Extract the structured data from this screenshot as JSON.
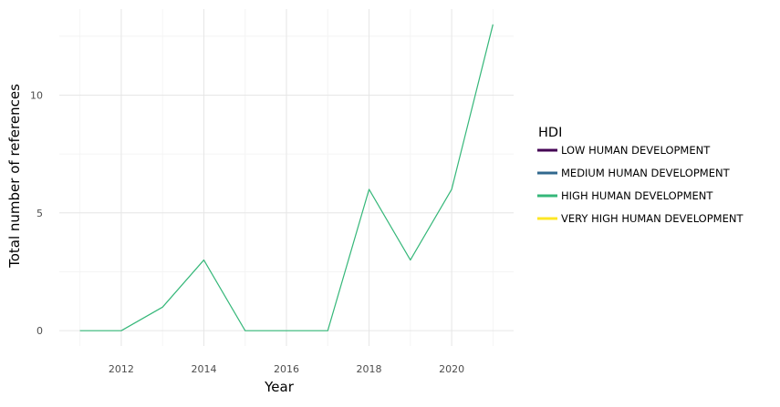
{
  "chart_data": {
    "type": "line",
    "title": "",
    "xlabel": "Year",
    "ylabel": "Total number of references",
    "x": [
      2011,
      2012,
      2013,
      2014,
      2015,
      2016,
      2017,
      2018,
      2019,
      2020,
      2021
    ],
    "x_ticks": [
      2012,
      2014,
      2016,
      2018,
      2020
    ],
    "y_ticks": [
      0,
      5,
      10
    ],
    "xlim": [
      2010.5,
      2021.5
    ],
    "ylim": [
      -0.65,
      13.65
    ],
    "grid": true,
    "legend_title": "HDI",
    "legend_position": "right",
    "legend": [
      {
        "label": "LOW HUMAN DEVELOPMENT",
        "color": "#440154"
      },
      {
        "label": "MEDIUM HUMAN DEVELOPMENT",
        "color": "#31688e"
      },
      {
        "label": "HIGH HUMAN DEVELOPMENT",
        "color": "#35b779"
      },
      {
        "label": "VERY HIGH HUMAN DEVELOPMENT",
        "color": "#fde725"
      }
    ],
    "series": [
      {
        "name": "HIGH HUMAN DEVELOPMENT",
        "color": "#35b779",
        "values": [
          0,
          0,
          1,
          3,
          0,
          0,
          0,
          6,
          3,
          6,
          13
        ]
      }
    ]
  }
}
